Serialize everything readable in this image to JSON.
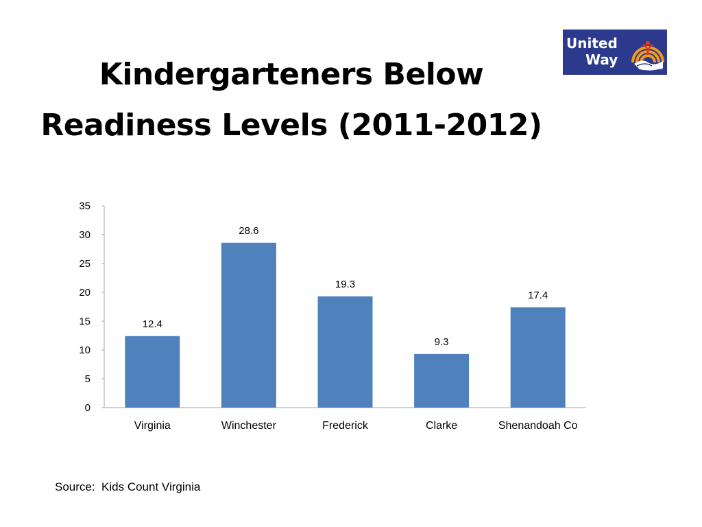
{
  "title": {
    "line1": "Kindergarteners Below",
    "line2": "Readiness Levels (2011-2012)"
  },
  "logo": {
    "line1": "United",
    "line2": "Way",
    "tm": "™",
    "colors": {
      "background": "#2b3a8c",
      "arc": "#f29a1d",
      "figure": "#e5312b",
      "text": "#ffffff"
    }
  },
  "chart_data": {
    "type": "bar",
    "categories": [
      "Virginia",
      "Winchester",
      "Frederick",
      "Clarke",
      "Shenandoah Co"
    ],
    "values": [
      12.4,
      28.6,
      19.3,
      9.3,
      17.4
    ],
    "data_labels": [
      "12.4",
      "28.6",
      "19.3",
      "9.3",
      "17.4"
    ],
    "ylim": [
      0,
      35
    ],
    "yticks": [
      0,
      5,
      10,
      15,
      20,
      25,
      30,
      35
    ],
    "grid": false,
    "bar_color": "#4f81bd",
    "axis_color": "#a6a6a6"
  },
  "source": "Source:  Kids Count Virginia"
}
